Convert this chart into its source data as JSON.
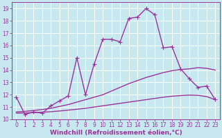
{
  "xlabel": "Windchill (Refroidissement éolien,°C)",
  "background_color": "#c8e8f0",
  "grid_color": "#ffffff",
  "line_color": "#993399",
  "xlim": [
    -0.5,
    23.5
  ],
  "ylim": [
    10,
    19.5
  ],
  "xticks": [
    0,
    1,
    2,
    3,
    4,
    5,
    6,
    7,
    8,
    9,
    10,
    11,
    12,
    13,
    14,
    15,
    16,
    17,
    18,
    19,
    20,
    21,
    22,
    23
  ],
  "yticks": [
    10,
    11,
    12,
    13,
    14,
    15,
    16,
    17,
    18,
    19
  ],
  "curve1_x": [
    0,
    1,
    2,
    3,
    4,
    5,
    6,
    7,
    8,
    9,
    10,
    11,
    12,
    13,
    14,
    15,
    16,
    17,
    18,
    19,
    20,
    21,
    22,
    23
  ],
  "curve1_y": [
    11.8,
    10.4,
    10.6,
    10.5,
    11.1,
    11.5,
    11.9,
    15.0,
    12.0,
    14.5,
    16.5,
    16.5,
    16.3,
    18.2,
    18.3,
    19.0,
    18.5,
    15.8,
    15.9,
    14.1,
    13.3,
    12.6,
    12.7,
    11.6
  ],
  "curve2_x": [
    0,
    1,
    2,
    3,
    4,
    5,
    6,
    7,
    8,
    9,
    10,
    11,
    12,
    13,
    14,
    15,
    16,
    17,
    18,
    19,
    20,
    21,
    22,
    23
  ],
  "curve2_y": [
    10.6,
    10.65,
    10.72,
    10.8,
    10.9,
    11.05,
    11.2,
    11.4,
    11.6,
    11.8,
    12.0,
    12.3,
    12.6,
    12.9,
    13.15,
    13.4,
    13.6,
    13.8,
    13.95,
    14.05,
    14.1,
    14.2,
    14.15,
    14.0
  ],
  "curve3_x": [
    0,
    1,
    2,
    3,
    4,
    5,
    6,
    7,
    8,
    9,
    10,
    11,
    12,
    13,
    14,
    15,
    16,
    17,
    18,
    19,
    20,
    21,
    22,
    23
  ],
  "curve3_y": [
    10.5,
    10.52,
    10.55,
    10.58,
    10.62,
    10.68,
    10.75,
    10.82,
    10.9,
    11.0,
    11.1,
    11.2,
    11.3,
    11.4,
    11.5,
    11.6,
    11.7,
    11.8,
    11.88,
    11.93,
    11.97,
    11.95,
    11.85,
    11.6
  ],
  "xlabel_fontsize": 6.5,
  "tick_fontsize": 5.5,
  "linewidth": 1.0,
  "markersize": 4
}
